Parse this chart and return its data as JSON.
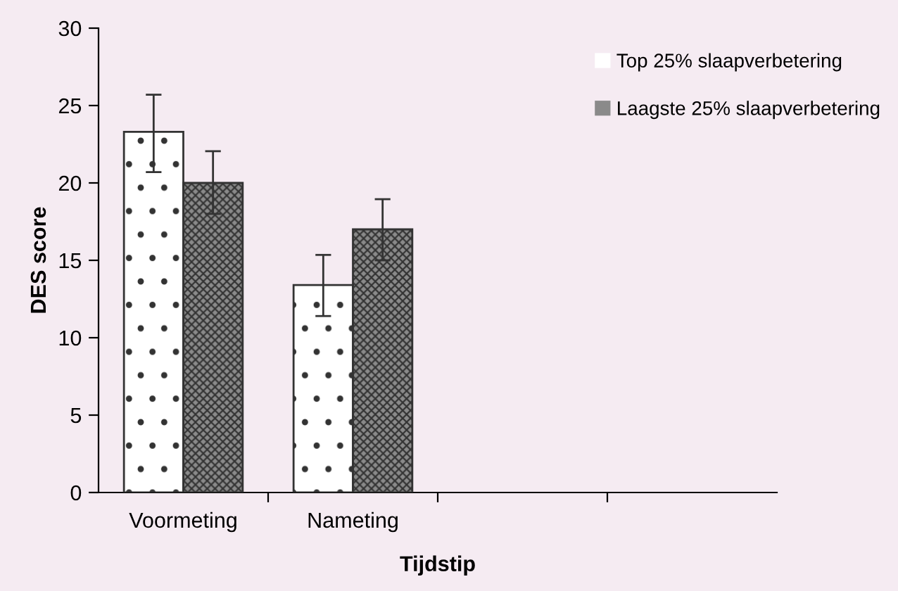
{
  "chart_data": {
    "type": "bar",
    "xlabel": "Tijdstip",
    "ylabel": "DES score",
    "categories": [
      "Voormeting",
      "Nameting",
      null,
      null
    ],
    "series": [
      {
        "name": "Top 25% slaapverbetering",
        "color": "#ffffff",
        "values": [
          23.3,
          13.4,
          null,
          null
        ],
        "errors": [
          [
            20.7,
            25.7
          ],
          [
            11.4,
            15.35
          ],
          null,
          null
        ]
      },
      {
        "name": "Laagste 25% slaapverbetering",
        "color": "#8a8a8a",
        "values": [
          20.0,
          17.0,
          null,
          null
        ],
        "errors": [
          [
            18.0,
            22.05
          ],
          [
            15.0,
            18.95
          ],
          null,
          null
        ]
      }
    ],
    "ylim": [
      0,
      30
    ],
    "yticks": [
      0,
      5,
      10,
      15,
      20,
      25,
      30
    ],
    "grid": false,
    "legend": "top right"
  }
}
